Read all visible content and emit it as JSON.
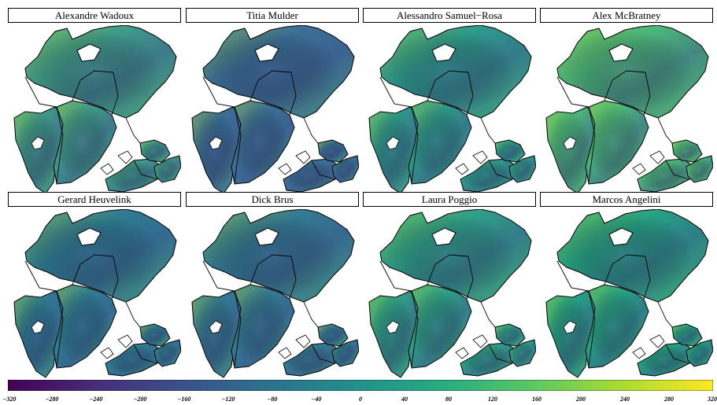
{
  "panels": [
    {
      "name": "Alexandre Wadoux",
      "tint": "#3f9a8a"
    },
    {
      "name": "Titia Mulder",
      "tint": "#3b6f96"
    },
    {
      "name": "Alessandro Samuel−Rosa",
      "tint": "#2e9a8b"
    },
    {
      "name": "Alex McBratney",
      "tint": "#4bb67a"
    },
    {
      "name": "Gerard Heuvelink",
      "tint": "#2f7c92"
    },
    {
      "name": "Dick Brus",
      "tint": "#337a92"
    },
    {
      "name": "Laura Poggio",
      "tint": "#2e9f87"
    },
    {
      "name": "Marcos Angelini",
      "tint": "#26a183"
    }
  ],
  "colorbar": {
    "ticks": [
      "−320",
      "−280",
      "−240",
      "−200",
      "−160",
      "−120",
      "−80",
      "−40",
      "0",
      "40",
      "80",
      "120",
      "160",
      "200",
      "240",
      "280",
      "320"
    ],
    "min": -320,
    "max": 320,
    "colormap": "viridis"
  },
  "colors": {
    "viridis": [
      "#440154",
      "#472d7b",
      "#3b528b",
      "#2c728e",
      "#21918c",
      "#28ae80",
      "#5ec962",
      "#addc30",
      "#fde725"
    ]
  }
}
